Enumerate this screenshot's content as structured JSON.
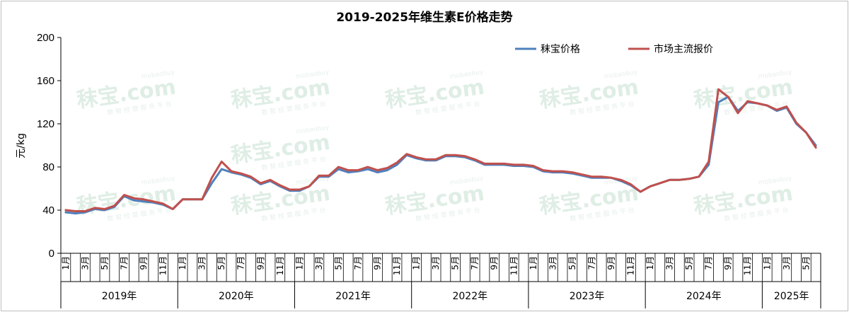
{
  "chart_data": {
    "type": "line",
    "title": "2019-2025年维生素E价格走势",
    "ylabel": "元/kg",
    "ylim": [
      0,
      200
    ],
    "yticks": [
      0,
      40,
      80,
      120,
      160,
      200
    ],
    "grid": false,
    "legend_position": "top-right",
    "watermark": {
      "brand": "mobaobuy",
      "logo_text": "秣宝.com",
      "tagline": "数 智 经 营 服 务 平 台"
    },
    "years": [
      "2019年",
      "2020年",
      "2021年",
      "2022年",
      "2023年",
      "2024年",
      "2025年"
    ],
    "month_labels": [
      "1月",
      "3月",
      "5月",
      "7月",
      "9月",
      "11月"
    ],
    "x_start": "2019-01",
    "x_end": "2025-06",
    "colors": {
      "mobao": "#4f81bd",
      "market": "#c0504d"
    },
    "series": [
      {
        "name": "秣宝价格",
        "x": [
          "2019-01",
          "2019-02",
          "2019-03",
          "2019-04",
          "2019-05",
          "2019-06",
          "2019-07",
          "2019-08",
          "2019-09",
          "2019-10",
          "2019-11",
          "2019-12",
          "2020-01",
          "2020-02",
          "2020-03",
          "2020-04",
          "2020-05",
          "2020-06",
          "2020-07",
          "2020-08",
          "2020-09",
          "2020-10",
          "2020-11",
          "2020-12",
          "2021-01",
          "2021-02",
          "2021-03",
          "2021-04",
          "2021-05",
          "2021-06",
          "2021-07",
          "2021-08",
          "2021-09",
          "2021-10",
          "2021-11",
          "2021-12",
          "2022-01",
          "2022-02",
          "2022-03",
          "2022-04",
          "2022-05",
          "2022-06",
          "2022-07",
          "2022-08",
          "2022-09",
          "2022-10",
          "2022-11",
          "2022-12",
          "2023-01",
          "2023-02",
          "2023-03",
          "2023-04",
          "2023-05",
          "2023-06",
          "2023-07",
          "2023-08",
          "2023-09",
          "2023-10",
          "2023-11",
          "2023-12",
          "2024-01",
          "2024-02",
          "2024-03",
          "2024-04",
          "2024-05",
          "2024-06",
          "2024-07",
          "2024-08",
          "2024-09",
          "2024-10",
          "2024-11",
          "2024-12",
          "2025-01",
          "2025-02",
          "2025-03",
          "2025-04",
          "2025-05",
          "2025-06"
        ],
        "values": [
          38,
          37,
          38,
          41,
          40,
          43,
          53,
          49,
          48,
          47,
          45,
          41,
          50,
          50,
          50,
          65,
          78,
          75,
          73,
          70,
          64,
          67,
          62,
          58,
          58,
          62,
          71,
          71,
          78,
          75,
          76,
          78,
          75,
          77,
          82,
          91,
          88,
          86,
          86,
          90,
          90,
          89,
          86,
          82,
          82,
          82,
          81,
          81,
          80,
          76,
          75,
          75,
          74,
          72,
          70,
          70,
          70,
          67,
          63,
          57,
          62,
          65,
          68,
          68,
          69,
          71,
          82,
          140,
          145,
          132,
          140,
          139,
          137,
          132,
          135,
          120,
          112,
          100
        ]
      },
      {
        "name": "市场主流报价",
        "x": [
          "2019-01",
          "2019-02",
          "2019-03",
          "2019-04",
          "2019-05",
          "2019-06",
          "2019-07",
          "2019-08",
          "2019-09",
          "2019-10",
          "2019-11",
          "2019-12",
          "2020-01",
          "2020-02",
          "2020-03",
          "2020-04",
          "2020-05",
          "2020-06",
          "2020-07",
          "2020-08",
          "2020-09",
          "2020-10",
          "2020-11",
          "2020-12",
          "2021-01",
          "2021-02",
          "2021-03",
          "2021-04",
          "2021-05",
          "2021-06",
          "2021-07",
          "2021-08",
          "2021-09",
          "2021-10",
          "2021-11",
          "2021-12",
          "2022-01",
          "2022-02",
          "2022-03",
          "2022-04",
          "2022-05",
          "2022-06",
          "2022-07",
          "2022-08",
          "2022-09",
          "2022-10",
          "2022-11",
          "2022-12",
          "2023-01",
          "2023-02",
          "2023-03",
          "2023-04",
          "2023-05",
          "2023-06",
          "2023-07",
          "2023-08",
          "2023-09",
          "2023-10",
          "2023-11",
          "2023-12",
          "2024-01",
          "2024-02",
          "2024-03",
          "2024-04",
          "2024-05",
          "2024-06",
          "2024-07",
          "2024-08",
          "2024-09",
          "2024-10",
          "2024-11",
          "2024-12",
          "2025-01",
          "2025-02",
          "2025-03",
          "2025-04",
          "2025-05",
          "2025-06"
        ],
        "values": [
          40,
          39,
          39,
          42,
          41,
          44,
          54,
          51,
          50,
          48,
          46,
          41,
          50,
          50,
          50,
          70,
          85,
          76,
          74,
          71,
          65,
          68,
          63,
          59,
          59,
          62,
          72,
          72,
          80,
          77,
          77,
          80,
          77,
          79,
          84,
          92,
          89,
          87,
          87,
          91,
          91,
          90,
          87,
          83,
          83,
          83,
          82,
          82,
          81,
          77,
          76,
          76,
          75,
          73,
          71,
          71,
          70,
          68,
          64,
          57,
          62,
          65,
          68,
          68,
          69,
          71,
          85,
          152,
          145,
          130,
          141,
          139,
          137,
          133,
          136,
          121,
          112,
          98
        ]
      }
    ]
  }
}
